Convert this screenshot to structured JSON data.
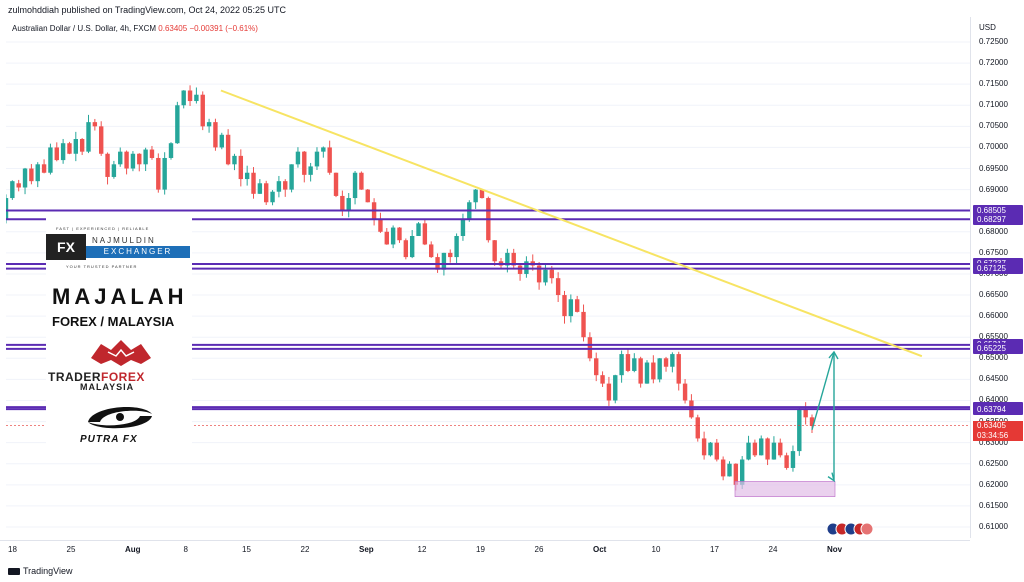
{
  "publisher": "zulmohddiah published on TradingView.com, Oct 24, 2022 05:25 UTC",
  "symbol": {
    "name": "Australian Dollar / U.S. Dollar, 4h, FXCM",
    "price": "0.63405",
    "change": "−0.00391 (−0.61%)"
  },
  "price_axis": {
    "currency": "USD",
    "ticks": [
      "0.72500",
      "0.72000",
      "0.71500",
      "0.71000",
      "0.70500",
      "0.70000",
      "0.69500",
      "0.69000",
      "0.68500",
      "0.68000",
      "0.67500",
      "0.67000",
      "0.66500",
      "0.66000",
      "0.65500",
      "0.65000",
      "0.64500",
      "0.64000",
      "0.63500",
      "0.63000",
      "0.62500",
      "0.62000",
      "0.61500",
      "0.61000"
    ],
    "levels": [
      "0.68505",
      "0.68297",
      "0.67237",
      "0.67125",
      "0.65317",
      "0.65225",
      "0.63842",
      "0.63794"
    ],
    "current_price": "0.63405",
    "countdown": "03:34:56"
  },
  "time_axis": {
    "ticks": [
      {
        "label": "18",
        "bold": false
      },
      {
        "label": "25",
        "bold": false
      },
      {
        "label": "Aug",
        "bold": true
      },
      {
        "label": "8",
        "bold": false
      },
      {
        "label": "15",
        "bold": false
      },
      {
        "label": "22",
        "bold": false
      },
      {
        "label": "Sep",
        "bold": true
      },
      {
        "label": "12",
        "bold": false
      },
      {
        "label": "19",
        "bold": false
      },
      {
        "label": "26",
        "bold": false
      },
      {
        "label": "Oct",
        "bold": true
      },
      {
        "label": "10",
        "bold": false
      },
      {
        "label": "17",
        "bold": false
      },
      {
        "label": "24",
        "bold": false
      },
      {
        "label": "Nov",
        "bold": true
      }
    ]
  },
  "footer": "TradingView",
  "colors": {
    "bull": "#26a69a",
    "bear": "#ef5350",
    "level_line": "#5b2bb3",
    "trendline": "#f7e463",
    "arrow": "#26a69a",
    "target_box": "#e1bee7"
  },
  "logos": {
    "fx_dark": "FX",
    "fx_name": "NAJMULDIN",
    "fx_exchanger": "EXCHANGER",
    "fx_tagline_top": "FAST | EXPERIENCED | RELIABLE",
    "fx_tagline_bottom": "YOUR TRUSTED PARTNER",
    "majalah": "MAJALAH",
    "forex_malaysia": "FOREX / MALAYSIA",
    "trader": "TRADER",
    "forex": "FOREX",
    "malaysia": "MALAYSIA",
    "putra": "PUTRA FX"
  },
  "chart_data": {
    "type": "candlestick",
    "timeframe": "4h",
    "ylim": [
      0.6075,
      0.7275
    ],
    "horizontal_levels": [
      0.68505,
      0.68297,
      0.67237,
      0.67125,
      0.65317,
      0.65225,
      0.63842,
      0.63794
    ],
    "trendline": [
      {
        "date": "2022-08-12",
        "price": 0.7135
      },
      {
        "date": "2022-11-01",
        "price": 0.6505
      }
    ],
    "projection": {
      "target_up": 0.6515,
      "target_down": 0.621,
      "zone": [
        0.6172,
        0.6208
      ]
    },
    "path": [
      [
        0.683,
        0.688
      ],
      [
        0.688,
        0.692
      ],
      [
        0.6915,
        0.6905
      ],
      [
        0.6905,
        0.695
      ],
      [
        0.695,
        0.692
      ],
      [
        0.692,
        0.696
      ],
      [
        0.696,
        0.694
      ],
      [
        0.694,
        0.7
      ],
      [
        0.7,
        0.697
      ],
      [
        0.697,
        0.701
      ],
      [
        0.701,
        0.6985
      ],
      [
        0.6985,
        0.702
      ],
      [
        0.702,
        0.699
      ],
      [
        0.699,
        0.706
      ],
      [
        0.706,
        0.705
      ],
      [
        0.705,
        0.6985
      ],
      [
        0.6985,
        0.693
      ],
      [
        0.693,
        0.696
      ],
      [
        0.696,
        0.699
      ],
      [
        0.699,
        0.695
      ],
      [
        0.695,
        0.6985
      ],
      [
        0.6985,
        0.696
      ],
      [
        0.696,
        0.6995
      ],
      [
        0.6995,
        0.6975
      ],
      [
        0.6975,
        0.69
      ],
      [
        0.69,
        0.6975
      ],
      [
        0.6975,
        0.701
      ],
      [
        0.701,
        0.71
      ],
      [
        0.71,
        0.7135
      ],
      [
        0.7135,
        0.711
      ],
      [
        0.711,
        0.7125
      ],
      [
        0.7125,
        0.705
      ],
      [
        0.705,
        0.706
      ],
      [
        0.706,
        0.7
      ],
      [
        0.7,
        0.703
      ],
      [
        0.703,
        0.696
      ],
      [
        0.696,
        0.698
      ],
      [
        0.698,
        0.6925
      ],
      [
        0.6925,
        0.694
      ],
      [
        0.694,
        0.689
      ],
      [
        0.689,
        0.6915
      ],
      [
        0.6915,
        0.687
      ],
      [
        0.687,
        0.6895
      ],
      [
        0.6895,
        0.692
      ],
      [
        0.692,
        0.69
      ],
      [
        0.69,
        0.696
      ],
      [
        0.696,
        0.699
      ],
      [
        0.699,
        0.6935
      ],
      [
        0.6935,
        0.6955
      ],
      [
        0.6955,
        0.699
      ],
      [
        0.699,
        0.7
      ],
      [
        0.7,
        0.694
      ],
      [
        0.694,
        0.6885
      ],
      [
        0.6885,
        0.685
      ],
      [
        0.685,
        0.688
      ],
      [
        0.688,
        0.694
      ],
      [
        0.694,
        0.69
      ],
      [
        0.69,
        0.687
      ],
      [
        0.687,
        0.683
      ],
      [
        0.683,
        0.68
      ],
      [
        0.68,
        0.677
      ],
      [
        0.677,
        0.681
      ],
      [
        0.681,
        0.678
      ],
      [
        0.678,
        0.674
      ],
      [
        0.674,
        0.679
      ],
      [
        0.679,
        0.682
      ],
      [
        0.682,
        0.677
      ],
      [
        0.677,
        0.674
      ],
      [
        0.674,
        0.671
      ],
      [
        0.671,
        0.675
      ],
      [
        0.675,
        0.674
      ],
      [
        0.674,
        0.679
      ],
      [
        0.679,
        0.683
      ],
      [
        0.683,
        0.687
      ],
      [
        0.687,
        0.69
      ],
      [
        0.69,
        0.688
      ],
      [
        0.688,
        0.678
      ],
      [
        0.678,
        0.673
      ],
      [
        0.673,
        0.672
      ],
      [
        0.672,
        0.675
      ],
      [
        0.675,
        0.672
      ],
      [
        0.672,
        0.67
      ],
      [
        0.67,
        0.673
      ],
      [
        0.673,
        0.672
      ],
      [
        0.672,
        0.668
      ],
      [
        0.668,
        0.671
      ],
      [
        0.671,
        0.669
      ],
      [
        0.669,
        0.665
      ],
      [
        0.665,
        0.66
      ],
      [
        0.66,
        0.664
      ],
      [
        0.664,
        0.661
      ],
      [
        0.661,
        0.655
      ],
      [
        0.655,
        0.65
      ],
      [
        0.65,
        0.646
      ],
      [
        0.646,
        0.644
      ],
      [
        0.644,
        0.64
      ],
      [
        0.64,
        0.646
      ],
      [
        0.646,
        0.651
      ],
      [
        0.651,
        0.647
      ],
      [
        0.647,
        0.65
      ],
      [
        0.65,
        0.644
      ],
      [
        0.644,
        0.649
      ],
      [
        0.649,
        0.645
      ],
      [
        0.645,
        0.65
      ],
      [
        0.65,
        0.648
      ],
      [
        0.648,
        0.651
      ],
      [
        0.651,
        0.644
      ],
      [
        0.644,
        0.64
      ],
      [
        0.64,
        0.636
      ],
      [
        0.636,
        0.631
      ],
      [
        0.631,
        0.627
      ],
      [
        0.627,
        0.63
      ],
      [
        0.63,
        0.626
      ],
      [
        0.626,
        0.622
      ],
      [
        0.622,
        0.625
      ],
      [
        0.625,
        0.62
      ],
      [
        0.62,
        0.626
      ],
      [
        0.626,
        0.63
      ],
      [
        0.63,
        0.627
      ],
      [
        0.627,
        0.631
      ],
      [
        0.631,
        0.626
      ],
      [
        0.626,
        0.63
      ],
      [
        0.63,
        0.627
      ],
      [
        0.627,
        0.624
      ],
      [
        0.624,
        0.628
      ],
      [
        0.628,
        0.638
      ],
      [
        0.638,
        0.636
      ],
      [
        0.636,
        0.634
      ]
    ]
  }
}
